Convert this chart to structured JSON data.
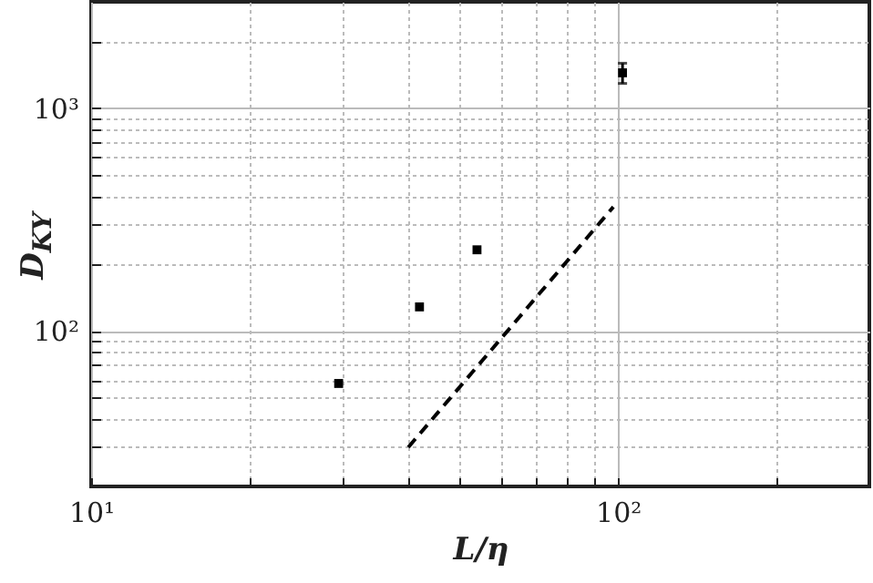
{
  "chart_data": {
    "type": "scatter",
    "xlabel": "L/η",
    "ylabel": "D$_{KY}$",
    "log": "xy",
    "grid": true,
    "marker": "square",
    "xlim": [
      10,
      300
    ],
    "ylim": [
      20,
      3000
    ],
    "xticks": [
      {
        "value": 10,
        "label": "10¹"
      },
      {
        "value": 20,
        "label": null
      },
      {
        "value": 30,
        "label": null
      },
      {
        "value": 40,
        "label": null
      },
      {
        "value": 50,
        "label": null
      },
      {
        "value": 60,
        "label": null
      },
      {
        "value": 70,
        "label": null
      },
      {
        "value": 80,
        "label": null
      },
      {
        "value": 90,
        "label": null
      },
      {
        "value": 100,
        "label": "10²"
      },
      {
        "value": 200,
        "label": null
      }
    ],
    "yticks": [
      {
        "value": 30,
        "label": null
      },
      {
        "value": 40,
        "label": null
      },
      {
        "value": 50,
        "label": null
      },
      {
        "value": 60,
        "label": null
      },
      {
        "value": 70,
        "label": null
      },
      {
        "value": 80,
        "label": null
      },
      {
        "value": 90,
        "label": null
      },
      {
        "value": 100,
        "label": "10²"
      },
      {
        "value": 200,
        "label": null
      },
      {
        "value": 300,
        "label": null
      },
      {
        "value": 400,
        "label": null
      },
      {
        "value": 500,
        "label": null
      },
      {
        "value": 600,
        "label": null
      },
      {
        "value": 700,
        "label": null
      },
      {
        "value": 800,
        "label": null
      },
      {
        "value": 900,
        "label": null
      },
      {
        "value": 1000,
        "label": "10³"
      },
      {
        "value": 2000,
        "label": null
      }
    ],
    "series": [
      {
        "type": "scatter",
        "color": "#000000",
        "x": [
          29.5,
          42,
          54,
          102
        ],
        "values": [
          58,
          128,
          231,
          1440
        ],
        "errors": [
          null,
          null,
          null,
          150
        ]
      },
      {
        "type": "line",
        "color": "#000000",
        "line_style": "dashed",
        "marker": "none",
        "x": [
          40,
          98
        ],
        "values": [
          30,
          360
        ]
      }
    ]
  }
}
